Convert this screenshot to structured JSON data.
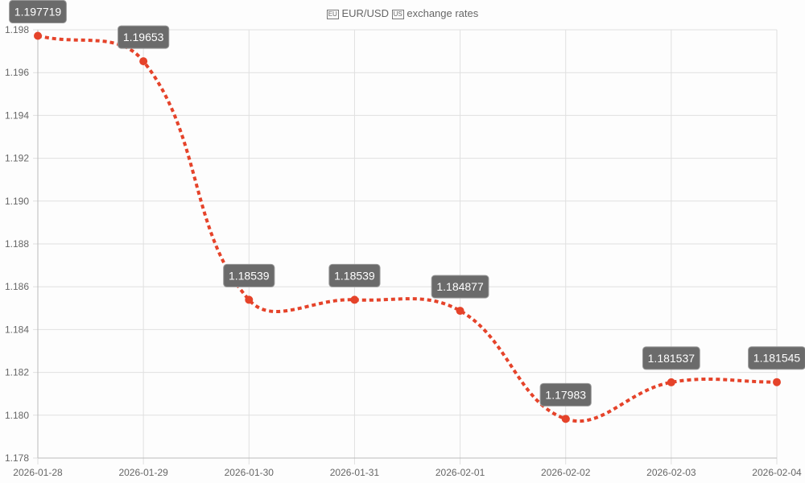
{
  "title": {
    "flag_from": "EU",
    "pair": "EUR/USD",
    "flag_to": "US",
    "suffix": "exchange rates"
  },
  "colors": {
    "line": "#e5432a",
    "label_bg": "#6b6b6b",
    "grid": "#e0e0e0"
  },
  "chart_data": {
    "type": "line",
    "title": "EUR/USD exchange rates",
    "categories": [
      "2026-01-28",
      "2026-01-29",
      "2026-01-30",
      "2026-01-31",
      "2026-02-01",
      "2026-02-02",
      "2026-02-03",
      "2026-02-04"
    ],
    "values": [
      1.197719,
      1.19653,
      1.18539,
      1.18539,
      1.184877,
      1.17983,
      1.181537,
      1.181545
    ],
    "data_labels": [
      "1.197719",
      "1.19653",
      "1.18539",
      "1.18539",
      "1.184877",
      "1.17983",
      "1.181537",
      "1.181545"
    ],
    "ylim": [
      1.178,
      1.198
    ],
    "yticks": [
      "1.178",
      "1.180",
      "1.182",
      "1.184",
      "1.186",
      "1.188",
      "1.190",
      "1.192",
      "1.194",
      "1.196",
      "1.198"
    ],
    "grid": true,
    "legend": "none",
    "line_style": "dotted",
    "xlabel": "",
    "ylabel": ""
  }
}
